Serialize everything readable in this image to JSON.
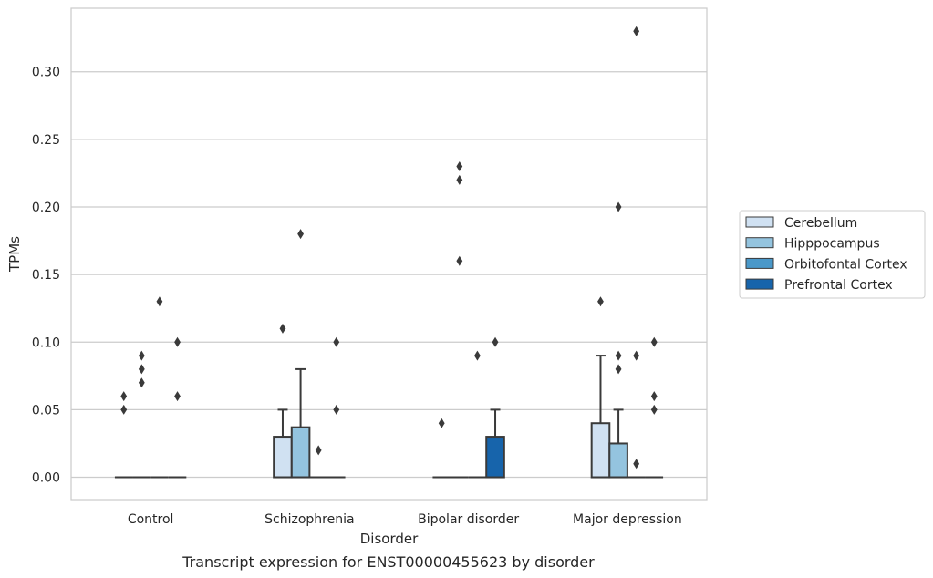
{
  "caption": "Transcript expression for ENST00000455623 by disorder",
  "chart_data": {
    "type": "box",
    "xlabel": "Disorder",
    "ylabel": "TPMs",
    "ylim": [
      -0.0165,
      0.347
    ],
    "yticks": [
      0.0,
      0.05,
      0.1,
      0.15,
      0.2,
      0.25,
      0.3
    ],
    "ytick_labels": [
      "0.00",
      "0.05",
      "0.10",
      "0.15",
      "0.20",
      "0.25",
      "0.30"
    ],
    "grid": true,
    "legend_position": "right",
    "categories": [
      "Control",
      "Schizophrenia",
      "Bipolar disorder",
      "Major depression"
    ],
    "series": [
      {
        "name": "Cerebellum",
        "color": "#d0e1f2",
        "boxes": [
          {
            "q1": 0,
            "median": 0,
            "q3": 0,
            "whisker_low": 0,
            "whisker_high": 0,
            "outliers": [
              0.05,
              0.06
            ]
          },
          {
            "q1": 0,
            "median": 0,
            "q3": 0.03,
            "whisker_low": 0,
            "whisker_high": 0.05,
            "outliers": [
              0.11
            ]
          },
          {
            "q1": 0,
            "median": 0,
            "q3": 0,
            "whisker_low": 0,
            "whisker_high": 0,
            "outliers": [
              0.04
            ]
          },
          {
            "q1": 0,
            "median": 0,
            "q3": 0.04,
            "whisker_low": 0,
            "whisker_high": 0.09,
            "outliers": [
              0.13
            ]
          }
        ]
      },
      {
        "name": "Hipppocampus",
        "color": "#94c4df",
        "boxes": [
          {
            "q1": 0,
            "median": 0,
            "q3": 0,
            "whisker_low": 0,
            "whisker_high": 0,
            "outliers": [
              0.07,
              0.08,
              0.09
            ]
          },
          {
            "q1": 0,
            "median": 0,
            "q3": 0.037,
            "whisker_low": 0,
            "whisker_high": 0.08,
            "outliers": [
              0.18
            ]
          },
          {
            "q1": 0,
            "median": 0,
            "q3": 0,
            "whisker_low": 0,
            "whisker_high": 0,
            "outliers": [
              0.16,
              0.22,
              0.23
            ]
          },
          {
            "q1": 0,
            "median": 0,
            "q3": 0.025,
            "whisker_low": 0,
            "whisker_high": 0.05,
            "outliers": [
              0.08,
              0.09,
              0.2
            ]
          }
        ]
      },
      {
        "name": "Orbitofontal Cortex",
        "color": "#4a98c9",
        "boxes": [
          {
            "q1": 0,
            "median": 0,
            "q3": 0,
            "whisker_low": 0,
            "whisker_high": 0,
            "outliers": [
              0.13
            ]
          },
          {
            "q1": 0,
            "median": 0,
            "q3": 0,
            "whisker_low": 0,
            "whisker_high": 0,
            "outliers": [
              0.02
            ]
          },
          {
            "q1": 0,
            "median": 0,
            "q3": 0,
            "whisker_low": 0,
            "whisker_high": 0,
            "outliers": [
              0.09
            ]
          },
          {
            "q1": 0,
            "median": 0,
            "q3": 0,
            "whisker_low": 0,
            "whisker_high": 0,
            "outliers": [
              0.01,
              0.09,
              0.33
            ]
          }
        ]
      },
      {
        "name": "Prefrontal Cortex",
        "color": "#1764ab",
        "boxes": [
          {
            "q1": 0,
            "median": 0,
            "q3": 0,
            "whisker_low": 0,
            "whisker_high": 0,
            "outliers": [
              0.06,
              0.1
            ]
          },
          {
            "q1": 0,
            "median": 0,
            "q3": 0,
            "whisker_low": 0,
            "whisker_high": 0,
            "outliers": [
              0.05,
              0.1
            ]
          },
          {
            "q1": 0,
            "median": 0,
            "q3": 0.03,
            "whisker_low": 0,
            "whisker_high": 0.05,
            "outliers": [
              0.1
            ]
          },
          {
            "q1": 0,
            "median": 0,
            "q3": 0,
            "whisker_low": 0,
            "whisker_high": 0,
            "outliers": [
              0.05,
              0.06,
              0.1
            ]
          }
        ]
      }
    ]
  }
}
